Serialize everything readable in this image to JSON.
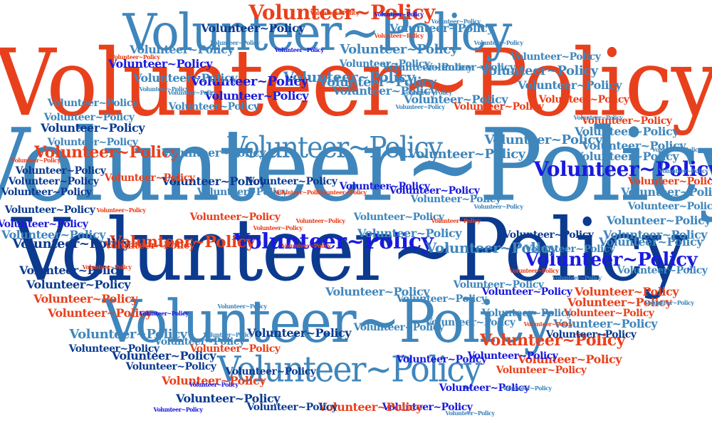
{
  "word": "Volunteer~Policy",
  "colors": {
    "red": "#e8401c",
    "steel": "#3f86bc",
    "navy": "#0b3a8f",
    "blue": "#1a1adf",
    "background": "#ffffff"
  }
}
